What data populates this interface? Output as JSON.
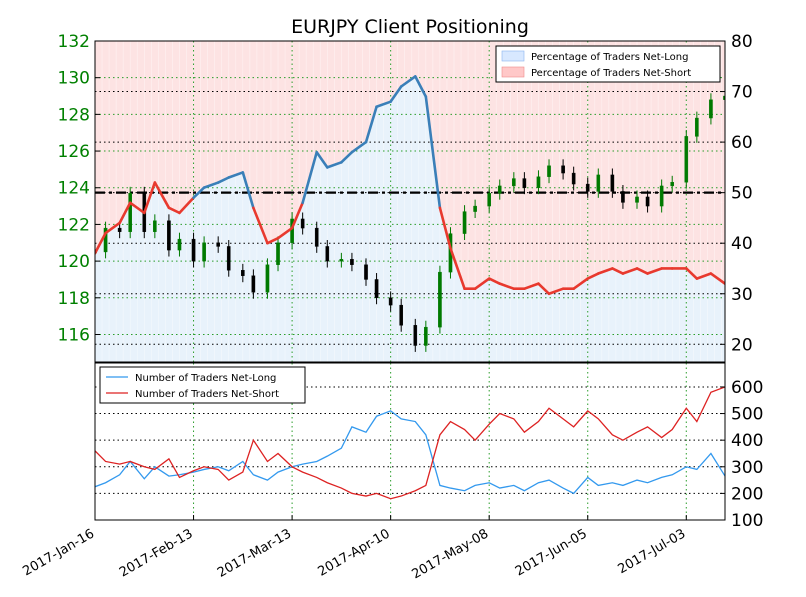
{
  "chart_data": [
    {
      "type": "line",
      "title": "EURJPY Client Positioning",
      "x_start": "2017-01-16",
      "x_end": "2017-07-14",
      "x_ticks": [
        "2017-Jan-16",
        "2017-Feb-13",
        "2017-Mar-13",
        "2017-Apr-10",
        "2017-May-08",
        "2017-Jun-05",
        "2017-Jul-03"
      ],
      "ylim_left": [
        114.5,
        132
      ],
      "yticks_left": [
        "116",
        "118",
        "120",
        "122",
        "124",
        "126",
        "128",
        "130",
        "132"
      ],
      "ylim_right": [
        16.5,
        80
      ],
      "yticks_right": [
        "20",
        "30",
        "40",
        "50",
        "60",
        "70",
        "80"
      ],
      "hline_right": 50,
      "legend": [
        "Percentage of Traders Net-Long",
        "Percentage of Traders Net-Short"
      ],
      "legend_position": "upper right",
      "grid": true,
      "price_candles": [
        {
          "date": "2017-01-16",
          "close": 120.5
        },
        {
          "date": "2017-01-19",
          "close": 121.8
        },
        {
          "date": "2017-01-23",
          "close": 121.6
        },
        {
          "date": "2017-01-26",
          "close": 123.7
        },
        {
          "date": "2017-01-30",
          "close": 121.6
        },
        {
          "date": "2017-02-02",
          "close": 122.2
        },
        {
          "date": "2017-02-06",
          "close": 120.6
        },
        {
          "date": "2017-02-09",
          "close": 121.2
        },
        {
          "date": "2017-02-13",
          "close": 120.0
        },
        {
          "date": "2017-02-16",
          "close": 121.0
        },
        {
          "date": "2017-02-20",
          "close": 120.8
        },
        {
          "date": "2017-02-23",
          "close": 119.5
        },
        {
          "date": "2017-02-27",
          "close": 119.2
        },
        {
          "date": "2017-03-02",
          "close": 118.3
        },
        {
          "date": "2017-03-06",
          "close": 119.8
        },
        {
          "date": "2017-03-09",
          "close": 121.0
        },
        {
          "date": "2017-03-13",
          "close": 122.3
        },
        {
          "date": "2017-03-16",
          "close": 121.8
        },
        {
          "date": "2017-03-20",
          "close": 120.8
        },
        {
          "date": "2017-03-23",
          "close": 120.0
        },
        {
          "date": "2017-03-27",
          "close": 120.1
        },
        {
          "date": "2017-03-30",
          "close": 119.8
        },
        {
          "date": "2017-04-03",
          "close": 119.0
        },
        {
          "date": "2017-04-06",
          "close": 118.0
        },
        {
          "date": "2017-04-10",
          "close": 117.6
        },
        {
          "date": "2017-04-13",
          "close": 116.5
        },
        {
          "date": "2017-04-17",
          "close": 115.4
        },
        {
          "date": "2017-04-20",
          "close": 116.4
        },
        {
          "date": "2017-04-24",
          "close": 119.4
        },
        {
          "date": "2017-04-27",
          "close": 121.5
        },
        {
          "date": "2017-05-01",
          "close": 122.7
        },
        {
          "date": "2017-05-04",
          "close": 123.0
        },
        {
          "date": "2017-05-08",
          "close": 123.7
        },
        {
          "date": "2017-05-11",
          "close": 124.1
        },
        {
          "date": "2017-05-15",
          "close": 124.5
        },
        {
          "date": "2017-05-18",
          "close": 124.0
        },
        {
          "date": "2017-05-22",
          "close": 124.6
        },
        {
          "date": "2017-05-25",
          "close": 125.2
        },
        {
          "date": "2017-05-29",
          "close": 124.8
        },
        {
          "date": "2017-06-01",
          "close": 124.2
        },
        {
          "date": "2017-06-05",
          "close": 123.8
        },
        {
          "date": "2017-06-08",
          "close": 124.7
        },
        {
          "date": "2017-06-12",
          "close": 123.8
        },
        {
          "date": "2017-06-15",
          "close": 123.2
        },
        {
          "date": "2017-06-19",
          "close": 123.5
        },
        {
          "date": "2017-06-22",
          "close": 123.0
        },
        {
          "date": "2017-06-26",
          "close": 124.1
        },
        {
          "date": "2017-06-29",
          "close": 124.3
        },
        {
          "date": "2017-07-03",
          "close": 126.8
        },
        {
          "date": "2017-07-06",
          "close": 127.8
        },
        {
          "date": "2017-07-10",
          "close": 128.8
        },
        {
          "date": "2017-07-14",
          "close": 129.0
        }
      ],
      "series": [
        {
          "name": "Percentage of Traders Net-Long",
          "axis": "right",
          "x": [
            "2017-01-16",
            "2017-01-19",
            "2017-01-23",
            "2017-01-26",
            "2017-01-30",
            "2017-02-02",
            "2017-02-06",
            "2017-02-09",
            "2017-02-13",
            "2017-02-16",
            "2017-02-20",
            "2017-02-23",
            "2017-02-27",
            "2017-03-02",
            "2017-03-06",
            "2017-03-09",
            "2017-03-13",
            "2017-03-16",
            "2017-03-20",
            "2017-03-23",
            "2017-03-27",
            "2017-03-30",
            "2017-04-03",
            "2017-04-06",
            "2017-04-10",
            "2017-04-13",
            "2017-04-17",
            "2017-04-20",
            "2017-04-24",
            "2017-04-27",
            "2017-05-01",
            "2017-05-04",
            "2017-05-08",
            "2017-05-11",
            "2017-05-15",
            "2017-05-18",
            "2017-05-22",
            "2017-05-25",
            "2017-05-29",
            "2017-06-01",
            "2017-06-05",
            "2017-06-08",
            "2017-06-12",
            "2017-06-15",
            "2017-06-19",
            "2017-06-22",
            "2017-06-26",
            "2017-06-29",
            "2017-07-03",
            "2017-07-06",
            "2017-07-10",
            "2017-07-14"
          ],
          "values": [
            38,
            42,
            44,
            48,
            46,
            52,
            47,
            46,
            49,
            51,
            52,
            53,
            54,
            47,
            40,
            41,
            43,
            48,
            58,
            55,
            56,
            58,
            60,
            67,
            68,
            71,
            73,
            69,
            47,
            39,
            31,
            31,
            33,
            32,
            31,
            31,
            32,
            30,
            31,
            31,
            33,
            34,
            35,
            34,
            35,
            34,
            35,
            35,
            35,
            33,
            34,
            32
          ]
        },
        {
          "name": "Percentage of Traders Net-Short",
          "axis": "right",
          "x": [
            "2017-01-16",
            "2017-01-19",
            "2017-01-23",
            "2017-01-26",
            "2017-01-30",
            "2017-02-02",
            "2017-02-06",
            "2017-02-09",
            "2017-02-13",
            "2017-02-16",
            "2017-02-20",
            "2017-02-23",
            "2017-02-27",
            "2017-03-02",
            "2017-03-06",
            "2017-03-09",
            "2017-03-13",
            "2017-03-16",
            "2017-03-20",
            "2017-03-23",
            "2017-03-27",
            "2017-03-30",
            "2017-04-03",
            "2017-04-06",
            "2017-04-10",
            "2017-04-13",
            "2017-04-17",
            "2017-04-20",
            "2017-04-24",
            "2017-04-27",
            "2017-05-01",
            "2017-05-04",
            "2017-05-08",
            "2017-05-11",
            "2017-05-15",
            "2017-05-18",
            "2017-05-22",
            "2017-05-25",
            "2017-05-29",
            "2017-06-01",
            "2017-06-05",
            "2017-06-08",
            "2017-06-12",
            "2017-06-15",
            "2017-06-19",
            "2017-06-22",
            "2017-06-26",
            "2017-06-29",
            "2017-07-03",
            "2017-07-06",
            "2017-07-10",
            "2017-07-14"
          ],
          "values": [
            62,
            58,
            56,
            52,
            54,
            48,
            53,
            54,
            51,
            49,
            48,
            47,
            46,
            53,
            60,
            59,
            57,
            52,
            42,
            45,
            44,
            42,
            40,
            33,
            32,
            29,
            27,
            31,
            53,
            61,
            69,
            69,
            67,
            68,
            69,
            69,
            68,
            70,
            69,
            69,
            67,
            66,
            65,
            66,
            65,
            66,
            65,
            65,
            65,
            67,
            66,
            68
          ]
        }
      ]
    },
    {
      "type": "line",
      "x_start": "2017-01-16",
      "x_end": "2017-07-14",
      "x_ticks": [
        "2017-Jan-16",
        "2017-Feb-13",
        "2017-Mar-13",
        "2017-Apr-10",
        "2017-May-08",
        "2017-Jun-05",
        "2017-Jul-03"
      ],
      "ylim": [
        100,
        690
      ],
      "yticks": [
        "100",
        "200",
        "300",
        "400",
        "500",
        "600"
      ],
      "legend": [
        "Number of Traders Net-Long",
        "Number of Traders Net-Short"
      ],
      "legend_position": "upper left",
      "grid": true,
      "series": [
        {
          "name": "Number of Traders Net-Long",
          "color": "#3399ee",
          "x": [
            "2017-01-16",
            "2017-01-19",
            "2017-01-23",
            "2017-01-26",
            "2017-01-30",
            "2017-02-02",
            "2017-02-06",
            "2017-02-09",
            "2017-02-13",
            "2017-02-16",
            "2017-02-20",
            "2017-02-23",
            "2017-02-27",
            "2017-03-02",
            "2017-03-06",
            "2017-03-09",
            "2017-03-13",
            "2017-03-16",
            "2017-03-20",
            "2017-03-23",
            "2017-03-27",
            "2017-03-30",
            "2017-04-03",
            "2017-04-06",
            "2017-04-10",
            "2017-04-13",
            "2017-04-17",
            "2017-04-20",
            "2017-04-24",
            "2017-04-27",
            "2017-05-01",
            "2017-05-04",
            "2017-05-08",
            "2017-05-11",
            "2017-05-15",
            "2017-05-18",
            "2017-05-22",
            "2017-05-25",
            "2017-05-29",
            "2017-06-01",
            "2017-06-05",
            "2017-06-08",
            "2017-06-12",
            "2017-06-15",
            "2017-06-19",
            "2017-06-22",
            "2017-06-26",
            "2017-06-29",
            "2017-07-03",
            "2017-07-06",
            "2017-07-10",
            "2017-07-14"
          ],
          "values": [
            225,
            240,
            270,
            320,
            255,
            300,
            265,
            270,
            280,
            290,
            300,
            285,
            320,
            270,
            250,
            280,
            300,
            310,
            320,
            340,
            370,
            450,
            430,
            490,
            510,
            480,
            470,
            420,
            230,
            220,
            210,
            230,
            240,
            220,
            230,
            210,
            240,
            250,
            220,
            200,
            260,
            230,
            240,
            230,
            250,
            240,
            260,
            270,
            300,
            290,
            350,
            265
          ]
        },
        {
          "name": "Number of Traders Net-Short",
          "color": "#dd2222",
          "x": [
            "2017-01-16",
            "2017-01-19",
            "2017-01-23",
            "2017-01-26",
            "2017-01-30",
            "2017-02-02",
            "2017-02-06",
            "2017-02-09",
            "2017-02-13",
            "2017-02-16",
            "2017-02-20",
            "2017-02-23",
            "2017-02-27",
            "2017-03-02",
            "2017-03-06",
            "2017-03-09",
            "2017-03-13",
            "2017-03-16",
            "2017-03-20",
            "2017-03-23",
            "2017-03-27",
            "2017-03-30",
            "2017-04-03",
            "2017-04-06",
            "2017-04-10",
            "2017-04-13",
            "2017-04-17",
            "2017-04-20",
            "2017-04-24",
            "2017-04-27",
            "2017-05-01",
            "2017-05-04",
            "2017-05-08",
            "2017-05-11",
            "2017-05-15",
            "2017-05-18",
            "2017-05-22",
            "2017-05-25",
            "2017-05-29",
            "2017-06-01",
            "2017-06-05",
            "2017-06-08",
            "2017-06-12",
            "2017-06-15",
            "2017-06-19",
            "2017-06-22",
            "2017-06-26",
            "2017-06-29",
            "2017-07-03",
            "2017-07-06",
            "2017-07-10",
            "2017-07-14"
          ],
          "values": [
            360,
            320,
            310,
            320,
            300,
            290,
            330,
            260,
            285,
            300,
            290,
            250,
            280,
            400,
            320,
            350,
            300,
            280,
            260,
            240,
            220,
            200,
            190,
            200,
            180,
            190,
            210,
            230,
            420,
            470,
            440,
            400,
            460,
            500,
            480,
            430,
            470,
            520,
            480,
            450,
            510,
            480,
            420,
            400,
            430,
            450,
            410,
            440,
            520,
            470,
            580,
            600
          ]
        }
      ]
    }
  ]
}
